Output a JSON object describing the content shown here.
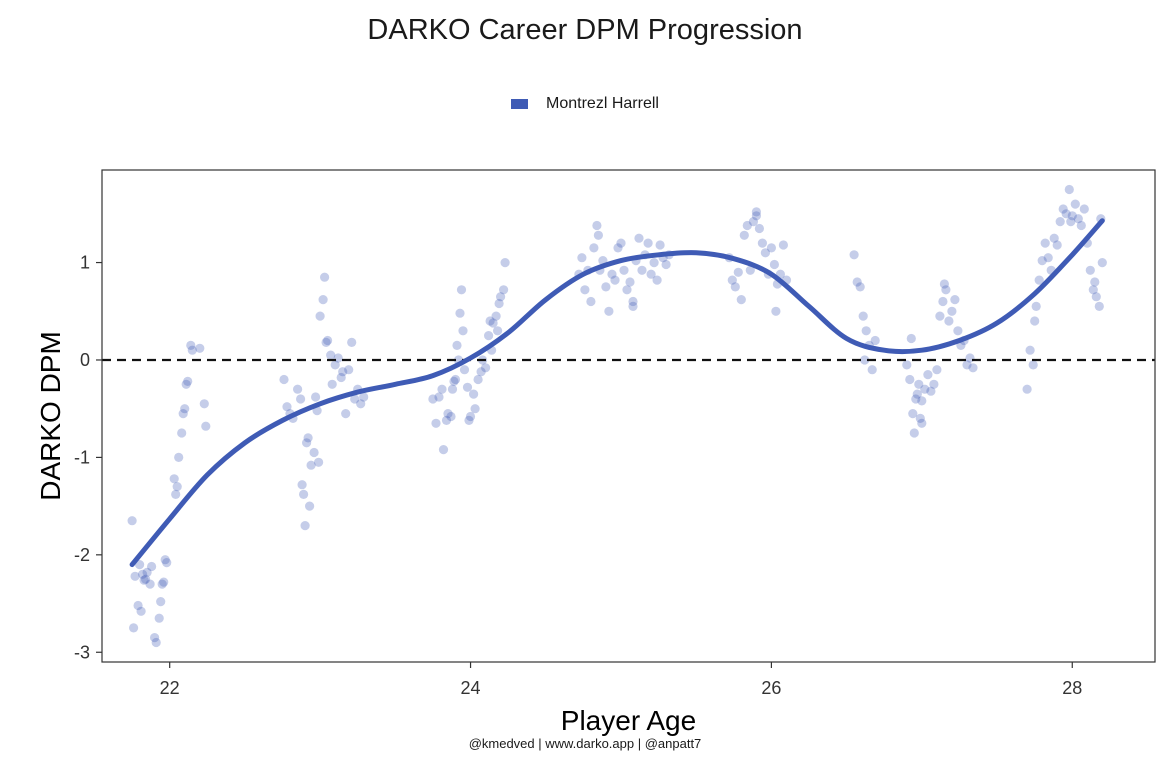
{
  "colors": {
    "series": "#3f5bb5",
    "point": "#3f5bb5",
    "reference_line": "#111111",
    "frame": "#333333"
  },
  "caption": "@kmedved | www.darko.app | @anpatt7",
  "chart_data": {
    "type": "line",
    "title": "DARKO Career DPM Progression",
    "xlabel": "Player Age",
    "ylabel": "DARKO DPM",
    "xlim": [
      21.55,
      28.55
    ],
    "ylim": [
      -3.1,
      1.95
    ],
    "xticks": [
      22,
      24,
      26,
      28
    ],
    "xtick_labels": [
      "22",
      "24",
      "26",
      "28"
    ],
    "yticks": [
      -3,
      -2,
      -1,
      0,
      1
    ],
    "ytick_labels": [
      "-3",
      "-2",
      "-1",
      "0",
      "1"
    ],
    "grid": false,
    "legend_position": "top",
    "reference_line": {
      "y": 0,
      "style": "dashed"
    },
    "series": [
      {
        "name": "Montrezl Harrell",
        "smooth": {
          "x": [
            21.75,
            22.0,
            22.25,
            22.5,
            22.75,
            23.0,
            23.25,
            23.5,
            23.75,
            24.0,
            24.25,
            24.5,
            24.75,
            25.0,
            25.25,
            25.5,
            25.75,
            26.0,
            26.25,
            26.5,
            26.75,
            27.0,
            27.25,
            27.5,
            27.75,
            28.0,
            28.2
          ],
          "y": [
            -2.1,
            -1.63,
            -1.18,
            -0.85,
            -0.62,
            -0.45,
            -0.33,
            -0.25,
            -0.16,
            0.02,
            0.28,
            0.62,
            0.88,
            1.02,
            1.08,
            1.1,
            1.04,
            0.88,
            0.55,
            0.22,
            0.1,
            0.1,
            0.2,
            0.38,
            0.68,
            1.08,
            1.43
          ]
        },
        "points": [
          [
            21.75,
            -1.65
          ],
          [
            21.77,
            -2.22
          ],
          [
            21.79,
            -2.52
          ],
          [
            21.8,
            -2.1
          ],
          [
            21.82,
            -2.2
          ],
          [
            21.83,
            -2.26
          ],
          [
            21.84,
            -2.25
          ],
          [
            21.85,
            -2.18
          ],
          [
            21.87,
            -2.3
          ],
          [
            21.88,
            -2.12
          ],
          [
            21.9,
            -2.85
          ],
          [
            21.91,
            -2.9
          ],
          [
            21.93,
            -2.65
          ],
          [
            21.94,
            -2.48
          ],
          [
            21.95,
            -2.3
          ],
          [
            21.96,
            -2.28
          ],
          [
            21.97,
            -2.05
          ],
          [
            21.98,
            -2.08
          ],
          [
            21.76,
            -2.75
          ],
          [
            21.81,
            -2.58
          ],
          [
            22.03,
            -1.22
          ],
          [
            22.04,
            -1.38
          ],
          [
            22.06,
            -1.0
          ],
          [
            22.08,
            -0.75
          ],
          [
            22.1,
            -0.5
          ],
          [
            22.11,
            -0.25
          ],
          [
            22.12,
            -0.22
          ],
          [
            22.14,
            0.15
          ],
          [
            22.15,
            0.1
          ],
          [
            22.2,
            0.12
          ],
          [
            22.23,
            -0.45
          ],
          [
            22.24,
            -0.68
          ],
          [
            22.05,
            -1.3
          ],
          [
            22.09,
            -0.55
          ],
          [
            22.76,
            -0.2
          ],
          [
            22.78,
            -0.48
          ],
          [
            22.8,
            -0.55
          ],
          [
            22.82,
            -0.6
          ],
          [
            22.85,
            -0.3
          ],
          [
            22.87,
            -0.4
          ],
          [
            22.88,
            -1.28
          ],
          [
            22.89,
            -1.38
          ],
          [
            22.9,
            -1.7
          ],
          [
            22.91,
            -0.85
          ],
          [
            22.92,
            -0.8
          ],
          [
            22.94,
            -1.08
          ],
          [
            22.96,
            -0.95
          ],
          [
            22.97,
            -0.38
          ],
          [
            22.98,
            -0.52
          ],
          [
            23.0,
            0.45
          ],
          [
            23.02,
            0.62
          ],
          [
            23.03,
            0.85
          ],
          [
            23.04,
            0.18
          ],
          [
            23.05,
            0.2
          ],
          [
            23.07,
            0.05
          ],
          [
            23.08,
            -0.25
          ],
          [
            23.1,
            -0.05
          ],
          [
            23.12,
            0.02
          ],
          [
            23.14,
            -0.18
          ],
          [
            23.15,
            -0.12
          ],
          [
            23.17,
            -0.55
          ],
          [
            23.19,
            -0.1
          ],
          [
            23.21,
            0.18
          ],
          [
            23.23,
            -0.4
          ],
          [
            23.25,
            -0.3
          ],
          [
            23.27,
            -0.45
          ],
          [
            23.29,
            -0.38
          ],
          [
            22.93,
            -1.5
          ],
          [
            22.99,
            -1.05
          ],
          [
            23.75,
            -0.4
          ],
          [
            23.77,
            -0.65
          ],
          [
            23.79,
            -0.38
          ],
          [
            23.81,
            -0.3
          ],
          [
            23.82,
            -0.92
          ],
          [
            23.84,
            -0.62
          ],
          [
            23.85,
            -0.55
          ],
          [
            23.87,
            -0.58
          ],
          [
            23.88,
            -0.3
          ],
          [
            23.89,
            -0.22
          ],
          [
            23.9,
            -0.2
          ],
          [
            23.91,
            0.15
          ],
          [
            23.92,
            0.0
          ],
          [
            23.93,
            0.48
          ],
          [
            23.94,
            0.72
          ],
          [
            23.95,
            0.3
          ],
          [
            23.96,
            -0.1
          ],
          [
            23.98,
            -0.28
          ],
          [
            23.99,
            -0.62
          ],
          [
            24.0,
            -0.58
          ],
          [
            24.02,
            -0.35
          ],
          [
            24.03,
            -0.5
          ],
          [
            24.05,
            -0.2
          ],
          [
            24.07,
            -0.12
          ],
          [
            24.08,
            0.0
          ],
          [
            24.1,
            -0.08
          ],
          [
            24.12,
            0.25
          ],
          [
            24.14,
            0.1
          ],
          [
            24.15,
            0.38
          ],
          [
            24.17,
            0.45
          ],
          [
            24.19,
            0.58
          ],
          [
            24.2,
            0.65
          ],
          [
            24.22,
            0.72
          ],
          [
            24.23,
            1.0
          ],
          [
            24.13,
            0.4
          ],
          [
            24.18,
            0.3
          ],
          [
            24.72,
            0.88
          ],
          [
            24.74,
            1.05
          ],
          [
            24.76,
            0.72
          ],
          [
            24.78,
            0.92
          ],
          [
            24.8,
            0.6
          ],
          [
            24.82,
            1.15
          ],
          [
            24.84,
            1.38
          ],
          [
            24.86,
            0.92
          ],
          [
            24.88,
            1.02
          ],
          [
            24.9,
            0.75
          ],
          [
            24.92,
            0.5
          ],
          [
            24.94,
            0.88
          ],
          [
            24.96,
            0.82
          ],
          [
            24.98,
            1.15
          ],
          [
            25.0,
            1.2
          ],
          [
            25.02,
            0.92
          ],
          [
            25.04,
            0.72
          ],
          [
            25.06,
            0.8
          ],
          [
            25.08,
            0.6
          ],
          [
            25.1,
            1.02
          ],
          [
            25.12,
            1.25
          ],
          [
            25.14,
            0.92
          ],
          [
            25.16,
            1.08
          ],
          [
            25.18,
            1.2
          ],
          [
            25.2,
            0.88
          ],
          [
            25.22,
            1.0
          ],
          [
            25.24,
            0.82
          ],
          [
            25.26,
            1.18
          ],
          [
            25.28,
            1.05
          ],
          [
            25.3,
            0.98
          ],
          [
            25.32,
            1.08
          ],
          [
            24.85,
            1.28
          ],
          [
            25.08,
            0.55
          ],
          [
            25.72,
            1.05
          ],
          [
            25.74,
            0.82
          ],
          [
            25.76,
            0.75
          ],
          [
            25.78,
            0.9
          ],
          [
            25.8,
            0.62
          ],
          [
            25.82,
            1.28
          ],
          [
            25.84,
            1.38
          ],
          [
            25.86,
            0.92
          ],
          [
            25.88,
            1.42
          ],
          [
            25.9,
            1.52
          ],
          [
            25.92,
            1.35
          ],
          [
            25.94,
            1.2
          ],
          [
            25.96,
            1.1
          ],
          [
            25.98,
            0.88
          ],
          [
            26.0,
            1.15
          ],
          [
            26.02,
            0.98
          ],
          [
            26.04,
            0.78
          ],
          [
            26.06,
            0.88
          ],
          [
            26.08,
            1.18
          ],
          [
            26.1,
            0.82
          ],
          [
            26.03,
            0.5
          ],
          [
            25.9,
            1.48
          ],
          [
            26.55,
            1.08
          ],
          [
            26.57,
            0.8
          ],
          [
            26.59,
            0.75
          ],
          [
            26.61,
            0.45
          ],
          [
            26.63,
            0.3
          ],
          [
            26.65,
            0.15
          ],
          [
            26.67,
            -0.1
          ],
          [
            26.69,
            0.2
          ],
          [
            26.62,
            0.0
          ],
          [
            26.9,
            -0.05
          ],
          [
            26.92,
            -0.2
          ],
          [
            26.93,
            0.22
          ],
          [
            26.94,
            -0.55
          ],
          [
            26.95,
            -0.75
          ],
          [
            26.96,
            -0.4
          ],
          [
            26.97,
            -0.35
          ],
          [
            26.98,
            -0.25
          ],
          [
            26.99,
            -0.6
          ],
          [
            27.0,
            -0.42
          ],
          [
            27.02,
            -0.3
          ],
          [
            27.04,
            -0.15
          ],
          [
            27.06,
            -0.32
          ],
          [
            27.08,
            -0.25
          ],
          [
            27.1,
            -0.1
          ],
          [
            27.12,
            0.45
          ],
          [
            27.14,
            0.6
          ],
          [
            27.16,
            0.72
          ],
          [
            27.18,
            0.4
          ],
          [
            27.2,
            0.5
          ],
          [
            27.22,
            0.62
          ],
          [
            27.24,
            0.3
          ],
          [
            27.26,
            0.15
          ],
          [
            27.28,
            0.2
          ],
          [
            27.3,
            -0.05
          ],
          [
            27.32,
            0.02
          ],
          [
            27.34,
            -0.08
          ],
          [
            27.0,
            -0.65
          ],
          [
            27.15,
            0.78
          ],
          [
            27.7,
            -0.3
          ],
          [
            27.72,
            0.1
          ],
          [
            27.74,
            -0.05
          ],
          [
            27.75,
            0.4
          ],
          [
            27.76,
            0.55
          ],
          [
            27.78,
            0.82
          ],
          [
            27.8,
            1.02
          ],
          [
            27.82,
            1.2
          ],
          [
            27.84,
            1.05
          ],
          [
            27.86,
            0.92
          ],
          [
            27.88,
            1.25
          ],
          [
            27.9,
            1.18
          ],
          [
            27.92,
            1.42
          ],
          [
            27.94,
            1.55
          ],
          [
            27.96,
            1.5
          ],
          [
            27.98,
            1.75
          ],
          [
            28.0,
            1.48
          ],
          [
            28.02,
            1.6
          ],
          [
            28.04,
            1.45
          ],
          [
            28.06,
            1.38
          ],
          [
            28.08,
            1.55
          ],
          [
            28.1,
            1.2
          ],
          [
            28.12,
            0.92
          ],
          [
            28.14,
            0.72
          ],
          [
            28.16,
            0.65
          ],
          [
            28.18,
            0.55
          ],
          [
            28.2,
            1.0
          ],
          [
            28.19,
            1.45
          ],
          [
            27.99,
            1.42
          ],
          [
            28.15,
            0.8
          ]
        ]
      }
    ]
  }
}
